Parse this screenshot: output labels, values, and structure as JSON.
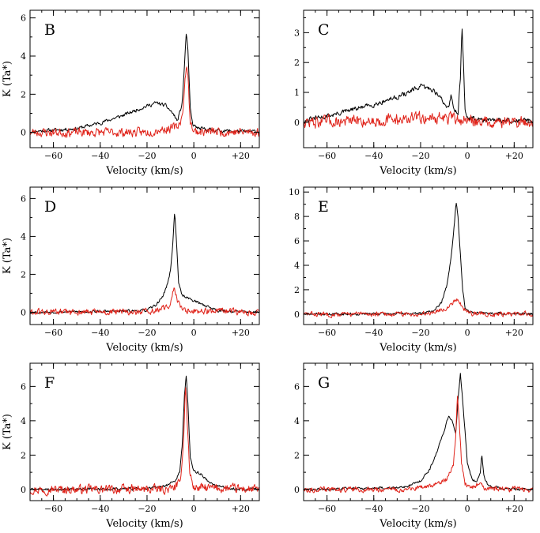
{
  "colors": {
    "black_series": "#000000",
    "red_series": "#e0241b"
  },
  "chart_data": [
    {
      "type": "line",
      "label": "B",
      "xlabel": "Velocity (km/s)",
      "ylabel": "K (Ta*)",
      "xlim": [
        -70,
        28
      ],
      "ylim": [
        -0.8,
        6.4
      ],
      "xticks": [
        -60,
        -40,
        -20,
        0,
        20
      ],
      "xtick_labels": [
        "−60",
        "−40",
        "−20",
        "0",
        "+20"
      ],
      "yticks": [
        0,
        2,
        4,
        6
      ],
      "ytick_labels": [
        "0",
        "2",
        "4",
        "6"
      ],
      "series": [
        {
          "name": "black",
          "color": "#000000",
          "noise": 0.08,
          "seed": 11,
          "points": [
            [
              -70,
              0.05
            ],
            [
              -60,
              0.12
            ],
            [
              -50,
              0.2
            ],
            [
              -40,
              0.5
            ],
            [
              -30,
              0.9
            ],
            [
              -22,
              1.3
            ],
            [
              -16,
              1.55
            ],
            [
              -12,
              1.4
            ],
            [
              -9,
              1.0
            ],
            [
              -7,
              0.6
            ],
            [
              -5,
              1.5
            ],
            [
              -4,
              3.5
            ],
            [
              -3.2,
              5.3
            ],
            [
              -2.5,
              4.2
            ],
            [
              -1.5,
              1.2
            ],
            [
              -0.5,
              0.4
            ],
            [
              2,
              0.2
            ],
            [
              10,
              0.1
            ],
            [
              20,
              0.05
            ],
            [
              28,
              0.05
            ]
          ]
        },
        {
          "name": "red",
          "color": "#e0241b",
          "noise": 0.2,
          "seed": 23,
          "points": [
            [
              -70,
              0
            ],
            [
              -20,
              0
            ],
            [
              -15,
              0.15
            ],
            [
              -10,
              0.2
            ],
            [
              -7,
              0.3
            ],
            [
              -5,
              0.8
            ],
            [
              -4,
              2.2
            ],
            [
              -3.2,
              3.6
            ],
            [
              -2.5,
              2.8
            ],
            [
              -1.5,
              0.6
            ],
            [
              0,
              0.05
            ],
            [
              28,
              0
            ]
          ]
        }
      ]
    },
    {
      "type": "line",
      "label": "C",
      "xlabel": "Velocity (km/s)",
      "ylabel": "",
      "xlim": [
        -70,
        28
      ],
      "ylim": [
        -0.85,
        3.75
      ],
      "xticks": [
        -60,
        -40,
        -20,
        0,
        20
      ],
      "xtick_labels": [
        "−60",
        "−40",
        "−20",
        "0",
        "+20"
      ],
      "yticks": [
        0,
        1,
        2,
        3
      ],
      "ytick_labels": [
        "0",
        "1",
        "2",
        "3"
      ],
      "series": [
        {
          "name": "black",
          "color": "#000000",
          "noise": 0.07,
          "seed": 31,
          "points": [
            [
              -70,
              0.05
            ],
            [
              -60,
              0.2
            ],
            [
              -50,
              0.4
            ],
            [
              -40,
              0.6
            ],
            [
              -30,
              0.85
            ],
            [
              -25,
              1.0
            ],
            [
              -20,
              1.2
            ],
            [
              -15,
              1.1
            ],
            [
              -12,
              0.9
            ],
            [
              -10,
              0.6
            ],
            [
              -8,
              0.5
            ],
            [
              -7,
              0.95
            ],
            [
              -6,
              0.5
            ],
            [
              -4,
              0.3
            ],
            [
              -3,
              1.5
            ],
            [
              -2.3,
              3.3
            ],
            [
              -1.8,
              2.2
            ],
            [
              -1,
              0.4
            ],
            [
              0,
              0.15
            ],
            [
              10,
              0.05
            ],
            [
              28,
              0.05
            ]
          ]
        },
        {
          "name": "red",
          "color": "#e0241b",
          "noise": 0.17,
          "seed": 47,
          "points": [
            [
              -70,
              0
            ],
            [
              -40,
              0.05
            ],
            [
              -30,
              0.1
            ],
            [
              -20,
              0.15
            ],
            [
              -10,
              0.15
            ],
            [
              0,
              0.05
            ],
            [
              28,
              0
            ]
          ]
        }
      ]
    },
    {
      "type": "line",
      "label": "D",
      "xlabel": "Velocity (km/s)",
      "ylabel": "K (Ta*)",
      "xlim": [
        -70,
        28
      ],
      "ylim": [
        -0.65,
        6.6
      ],
      "xticks": [
        -60,
        -40,
        -20,
        0,
        20
      ],
      "xtick_labels": [
        "−60",
        "−40",
        "−20",
        "0",
        "+20"
      ],
      "yticks": [
        0,
        2,
        4,
        6
      ],
      "ytick_labels": [
        "0",
        "2",
        "4",
        "6"
      ],
      "series": [
        {
          "name": "black",
          "color": "#000000",
          "noise": 0.06,
          "seed": 53,
          "points": [
            [
              -70,
              0
            ],
            [
              -30,
              0.05
            ],
            [
              -20,
              0.1
            ],
            [
              -16,
              0.4
            ],
            [
              -13,
              0.9
            ],
            [
              -11,
              1.6
            ],
            [
              -10,
              2.2
            ],
            [
              -9,
              3.6
            ],
            [
              -8.2,
              5.3
            ],
            [
              -7.5,
              4.0
            ],
            [
              -6.5,
              1.5
            ],
            [
              -5,
              0.9
            ],
            [
              -3,
              0.8
            ],
            [
              0,
              0.6
            ],
            [
              3,
              0.45
            ],
            [
              6,
              0.3
            ],
            [
              10,
              0.1
            ],
            [
              15,
              0.05
            ],
            [
              28,
              0
            ]
          ]
        },
        {
          "name": "red",
          "color": "#e0241b",
          "noise": 0.15,
          "seed": 61,
          "points": [
            [
              -70,
              0
            ],
            [
              -20,
              0
            ],
            [
              -12,
              0.2
            ],
            [
              -10,
              0.5
            ],
            [
              -8.5,
              1.3
            ],
            [
              -7.5,
              0.8
            ],
            [
              -6,
              0.3
            ],
            [
              -3,
              0.1
            ],
            [
              5,
              0.05
            ],
            [
              28,
              0
            ]
          ]
        }
      ]
    },
    {
      "type": "line",
      "label": "E",
      "xlabel": "Velocity (km/s)",
      "ylabel": "",
      "xlim": [
        -70,
        28
      ],
      "ylim": [
        -0.85,
        10.4
      ],
      "xticks": [
        -60,
        -40,
        -20,
        0,
        20
      ],
      "xtick_labels": [
        "−60",
        "−40",
        "−20",
        "0",
        "+20"
      ],
      "yticks": [
        0,
        2,
        4,
        6,
        8,
        10
      ],
      "ytick_labels": [
        "0",
        "2",
        "4",
        "6",
        "8",
        "10"
      ],
      "series": [
        {
          "name": "black",
          "color": "#000000",
          "noise": 0.09,
          "seed": 71,
          "points": [
            [
              -70,
              0
            ],
            [
              -20,
              0.05
            ],
            [
              -14,
              0.3
            ],
            [
              -11,
              1.0
            ],
            [
              -9,
              2.2
            ],
            [
              -7,
              4.5
            ],
            [
              -5.5,
              7.5
            ],
            [
              -4.8,
              9.2
            ],
            [
              -4,
              8.0
            ],
            [
              -3,
              5.0
            ],
            [
              -2,
              2.0
            ],
            [
              -1,
              0.6
            ],
            [
              0,
              0.3
            ],
            [
              3,
              0.1
            ],
            [
              28,
              0
            ]
          ]
        },
        {
          "name": "red",
          "color": "#e0241b",
          "noise": 0.17,
          "seed": 83,
          "points": [
            [
              -70,
              0
            ],
            [
              -20,
              0
            ],
            [
              -12,
              0.3
            ],
            [
              -8,
              0.6
            ],
            [
              -6,
              1.0
            ],
            [
              -4.5,
              1.3
            ],
            [
              -3,
              0.9
            ],
            [
              -1,
              0.3
            ],
            [
              2,
              0.05
            ],
            [
              28,
              0
            ]
          ]
        }
      ]
    },
    {
      "type": "line",
      "label": "F",
      "xlabel": "Velocity (km/s)",
      "ylabel": "K (Ta*)",
      "xlim": [
        -70,
        28
      ],
      "ylim": [
        -0.65,
        7.35
      ],
      "xticks": [
        -60,
        -40,
        -20,
        0,
        20
      ],
      "xtick_labels": [
        "−60",
        "−40",
        "−20",
        "0",
        "+20"
      ],
      "yticks": [
        0,
        2,
        4,
        6
      ],
      "ytick_labels": [
        "0",
        "2",
        "4",
        "6"
      ],
      "series": [
        {
          "name": "black",
          "color": "#000000",
          "noise": 0.07,
          "seed": 89,
          "points": [
            [
              -70,
              0
            ],
            [
              -20,
              0.05
            ],
            [
              -12,
              0.2
            ],
            [
              -8,
              0.5
            ],
            [
              -6,
              1.0
            ],
            [
              -5,
              2.5
            ],
            [
              -4,
              5.5
            ],
            [
              -3.2,
              6.7
            ],
            [
              -2.5,
              5.0
            ],
            [
              -1.5,
              1.8
            ],
            [
              0,
              1.1
            ],
            [
              3,
              0.9
            ],
            [
              6,
              0.5
            ],
            [
              10,
              0.2
            ],
            [
              15,
              0.05
            ],
            [
              28,
              0
            ]
          ]
        },
        {
          "name": "red",
          "color": "#e0241b",
          "noise": 0.22,
          "seed": 97,
          "points": [
            [
              -70,
              0
            ],
            [
              -10,
              0
            ],
            [
              -6,
              0.3
            ],
            [
              -4.5,
              2.5
            ],
            [
              -3.6,
              6.1
            ],
            [
              -2.8,
              4.0
            ],
            [
              -1.8,
              1.0
            ],
            [
              0,
              0.1
            ],
            [
              28,
              0
            ]
          ]
        }
      ]
    },
    {
      "type": "line",
      "label": "G",
      "xlabel": "Velocity (km/s)",
      "ylabel": "",
      "xlim": [
        -70,
        28
      ],
      "ylim": [
        -0.65,
        7.35
      ],
      "xticks": [
        -60,
        -40,
        -20,
        0,
        20
      ],
      "xtick_labels": [
        "−60",
        "−40",
        "−20",
        "0",
        "+20"
      ],
      "yticks": [
        0,
        2,
        4,
        6
      ],
      "ytick_labels": [
        "0",
        "2",
        "4",
        "6"
      ],
      "series": [
        {
          "name": "black",
          "color": "#000000",
          "noise": 0.06,
          "seed": 101,
          "points": [
            [
              -70,
              0
            ],
            [
              -30,
              0.1
            ],
            [
              -25,
              0.2
            ],
            [
              -20,
              0.5
            ],
            [
              -16,
              1.2
            ],
            [
              -13,
              2.2
            ],
            [
              -10,
              3.4
            ],
            [
              -8,
              4.3
            ],
            [
              -6.5,
              4.0
            ],
            [
              -5,
              3.2
            ],
            [
              -4,
              5.2
            ],
            [
              -3,
              6.8
            ],
            [
              -2,
              5.2
            ],
            [
              0,
              1.5
            ],
            [
              2,
              0.6
            ],
            [
              4,
              0.45
            ],
            [
              5.5,
              1.0
            ],
            [
              6.2,
              2.05
            ],
            [
              7,
              0.8
            ],
            [
              9,
              0.2
            ],
            [
              15,
              0.05
            ],
            [
              28,
              0
            ]
          ]
        },
        {
          "name": "red",
          "color": "#e0241b",
          "noise": 0.13,
          "seed": 113,
          "points": [
            [
              -70,
              0
            ],
            [
              -25,
              0
            ],
            [
              -15,
              0.2
            ],
            [
              -9,
              0.6
            ],
            [
              -6,
              1.5
            ],
            [
              -5,
              3.0
            ],
            [
              -4.2,
              5.5
            ],
            [
              -3.5,
              4.0
            ],
            [
              -2.5,
              1.5
            ],
            [
              -1,
              0.3
            ],
            [
              2,
              0.1
            ],
            [
              6,
              0.4
            ],
            [
              7,
              0.05
            ],
            [
              28,
              0
            ]
          ]
        }
      ]
    }
  ]
}
